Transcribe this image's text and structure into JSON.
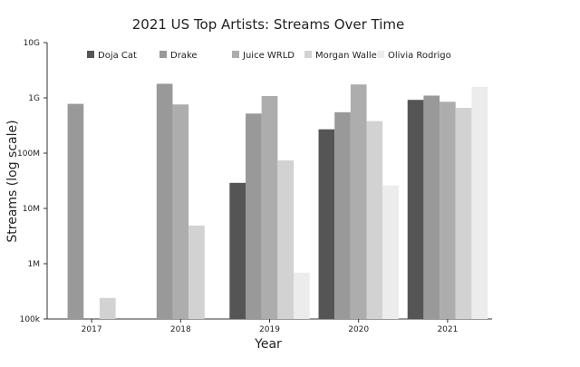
{
  "chart_data": {
    "type": "bar",
    "title": "2021 US Top Artists: Streams Over Time",
    "xlabel": "Year",
    "ylabel": "Streams (log scale)",
    "y_scale": "log",
    "ylim": [
      100000,
      10000000000
    ],
    "y_ticks": [
      {
        "value": 100000,
        "label": "100k"
      },
      {
        "value": 1000000,
        "label": "1M"
      },
      {
        "value": 10000000,
        "label": "10M"
      },
      {
        "value": 100000000,
        "label": "100M"
      },
      {
        "value": 1000000000,
        "label": "1G"
      },
      {
        "value": 10000000000,
        "label": "10G"
      }
    ],
    "categories": [
      "2017",
      "2018",
      "2019",
      "2020",
      "2021"
    ],
    "legend_position": "top",
    "grid": false,
    "series": [
      {
        "name": "Doja Cat",
        "color": "#555555",
        "values": [
          null,
          null,
          29000000,
          270000000,
          920000000
        ]
      },
      {
        "name": "Drake",
        "color": "#999999",
        "values": [
          780000000,
          1800000000,
          520000000,
          550000000,
          1100000000
        ]
      },
      {
        "name": "Juice WRLD",
        "color": "#adadad",
        "values": [
          null,
          760000000,
          1080000000,
          1750000000,
          850000000
        ]
      },
      {
        "name": "Morgan Wallen",
        "color": "#d2d2d2",
        "values": [
          240000,
          4900000,
          74000000,
          380000000,
          660000000
        ]
      },
      {
        "name": "Olivia Rodrigo",
        "color": "#ececec",
        "values": [
          null,
          null,
          690000,
          26000000,
          1580000000
        ]
      }
    ]
  }
}
